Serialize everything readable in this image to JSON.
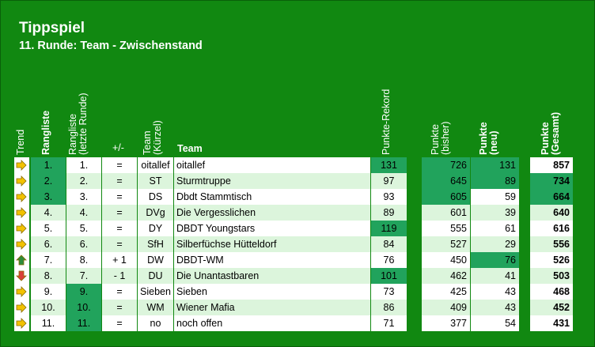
{
  "title": "Tippspiel",
  "subtitle": "11. Runde: Team - Zwischenstand",
  "headers": {
    "trend": "Trend",
    "rank": "Rangliste",
    "prev_rank": "Rangliste\n(letzte Runde)",
    "diff": "+/-",
    "short": "Team\n(Kürzel)",
    "team": "Team",
    "record": "Punkte-Rekord",
    "pts_prev": "Punkte\n(bisher)",
    "pts_new": "Punkte\n(neu)",
    "pts_total": "Punkte\n(Gesamt)"
  },
  "rows": [
    {
      "trend": "right",
      "rank": "1.",
      "prev": "1.",
      "diff": "=",
      "short": "oitallef",
      "team": "oitallef",
      "record": "131",
      "prev_pts": "726",
      "new_pts": "131",
      "total": "857"
    },
    {
      "trend": "right",
      "rank": "2.",
      "prev": "2.",
      "diff": "=",
      "short": "ST",
      "team": "Sturmtruppe",
      "record": "97",
      "prev_pts": "645",
      "new_pts": "89",
      "total": "734"
    },
    {
      "trend": "right",
      "rank": "3.",
      "prev": "3.",
      "diff": "=",
      "short": "DS",
      "team": "Dbdt Stammtisch",
      "record": "93",
      "prev_pts": "605",
      "new_pts": "59",
      "total": "664"
    },
    {
      "trend": "right",
      "rank": "4.",
      "prev": "4.",
      "diff": "=",
      "short": "DVg",
      "team": "Die Vergesslichen",
      "record": "89",
      "prev_pts": "601",
      "new_pts": "39",
      "total": "640"
    },
    {
      "trend": "right",
      "rank": "5.",
      "prev": "5.",
      "diff": "=",
      "short": "DY",
      "team": "DBDT Youngstars",
      "record": "119",
      "prev_pts": "555",
      "new_pts": "61",
      "total": "616"
    },
    {
      "trend": "right",
      "rank": "6.",
      "prev": "6.",
      "diff": "=",
      "short": "SfH",
      "team": "Silberfüchse Hütteldorf",
      "record": "84",
      "prev_pts": "527",
      "new_pts": "29",
      "total": "556"
    },
    {
      "trend": "up",
      "rank": "7.",
      "prev": "8.",
      "diff": "+ 1",
      "short": "DW",
      "team": "DBDT-WM",
      "record": "76",
      "prev_pts": "450",
      "new_pts": "76",
      "total": "526"
    },
    {
      "trend": "down",
      "rank": "8.",
      "prev": "7.",
      "diff": "- 1",
      "short": "DU",
      "team": "Die Unantastbaren",
      "record": "101",
      "prev_pts": "462",
      "new_pts": "41",
      "total": "503"
    },
    {
      "trend": "right",
      "rank": "9.",
      "prev": "9.",
      "diff": "=",
      "short": "Sieben",
      "team": "Sieben",
      "record": "73",
      "prev_pts": "425",
      "new_pts": "43",
      "total": "468"
    },
    {
      "trend": "right",
      "rank": "10.",
      "prev": "10.",
      "diff": "=",
      "short": "WM",
      "team": "Wiener Mafia",
      "record": "86",
      "prev_pts": "409",
      "new_pts": "43",
      "total": "452"
    },
    {
      "trend": "right",
      "rank": "11.",
      "prev": "11.",
      "diff": "=",
      "short": "no",
      "team": "noch offen",
      "record": "71",
      "prev_pts": "377",
      "new_pts": "54",
      "total": "431"
    }
  ],
  "colors": {
    "background": "#118811",
    "highlight": "#21a35c",
    "row_light": "#dcf5dc",
    "arrow_right": "#f2c200",
    "arrow_up": "#2e8b3a",
    "arrow_down": "#d9413a"
  }
}
